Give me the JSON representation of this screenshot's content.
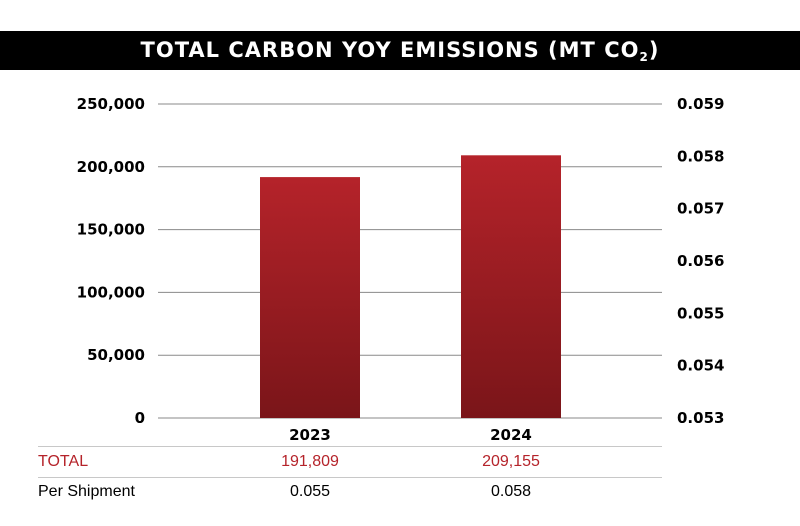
{
  "title": {
    "main": "TOTAL CARBON YOY EMISSIONS (MT CO",
    "subscript": "2",
    "close": ")"
  },
  "colors": {
    "bar_top": "#b5232a",
    "bar_bottom": "#7a1519",
    "total_text": "#b5232a",
    "title_bg": "#000000"
  },
  "chart_data": {
    "type": "bar",
    "title": "TOTAL CARBON YOY EMISSIONS (MT CO2)",
    "categories": [
      "2023",
      "2024"
    ],
    "series": [
      {
        "name": "TOTAL",
        "values": [
          191809,
          209155
        ],
        "axis": "left"
      },
      {
        "name": "Per Shipment",
        "values": [
          0.055,
          0.058
        ],
        "axis": "right"
      }
    ],
    "ylim": [
      0,
      250000
    ],
    "y_ticks": [
      "250,000",
      "200,000",
      "150,000",
      "100,000",
      "50,000",
      "0"
    ],
    "y_tick_values": [
      250000,
      200000,
      150000,
      100000,
      50000,
      0
    ],
    "y2lim": [
      0.053,
      0.059
    ],
    "y2_ticks": [
      "0.059",
      "0.058",
      "0.057",
      "0.056",
      "0.055",
      "0.054",
      "0.053"
    ],
    "y2_tick_values": [
      0.059,
      0.058,
      0.057,
      0.056,
      0.055,
      0.054,
      0.053
    ],
    "grid": true
  },
  "table": {
    "rows": [
      {
        "label": "TOTAL",
        "values": [
          "191,809",
          "209,155"
        ]
      },
      {
        "label": "Per Shipment",
        "values": [
          "0.055",
          "0.058"
        ]
      }
    ]
  }
}
